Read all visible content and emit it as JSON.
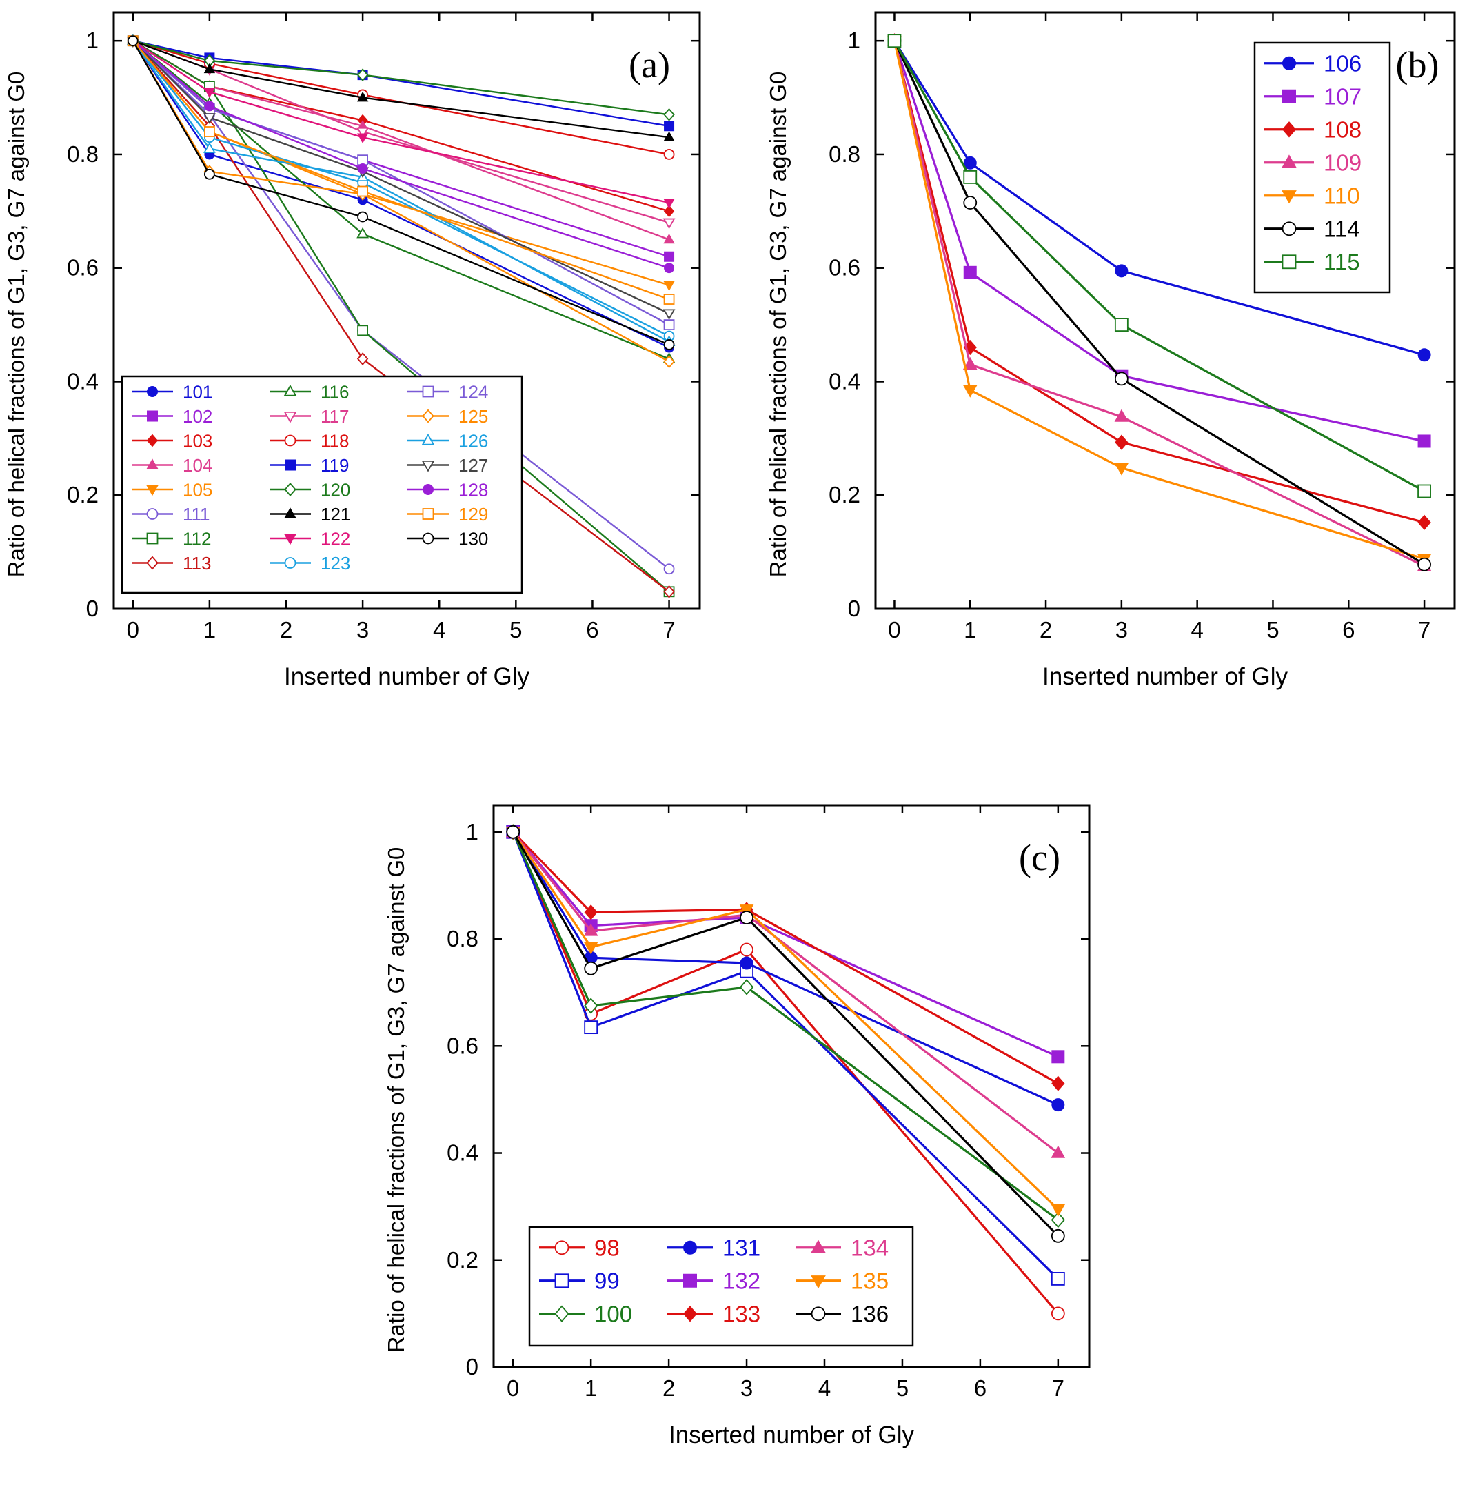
{
  "colors": {
    "blue": "#1010d8",
    "purple": "#9a1ed6",
    "red": "#dd1010",
    "pink": "#dd3c8e",
    "orange": "#ff8a00",
    "black": "#000000",
    "green": "#1c7a1c",
    "violet": "#7a5ad6",
    "darkred": "#c81414",
    "magenta": "#e0147a",
    "cyan": "#1aa0e0",
    "gray": "#444444"
  },
  "chart_data": [
    {
      "panel": "(a)",
      "type": "line",
      "xlabel": "Inserted number of Gly",
      "ylabel": "Ratio of helical fractions of G1, G3, G7 against G0",
      "xlim": [
        -0.25,
        7.4
      ],
      "ylim": [
        0,
        1.05
      ],
      "xticks": [
        "0",
        "1",
        "2",
        "3",
        "4",
        "5",
        "6",
        "7"
      ],
      "yticks": [
        "0",
        "0.2",
        "0.4",
        "0.6",
        "0.8",
        "1"
      ],
      "x": [
        0,
        1,
        3,
        7
      ],
      "legend_position": "bottom-left",
      "legend_columns": 3,
      "series": [
        {
          "name": "101",
          "color": "blue",
          "marker": "circle",
          "filled": true,
          "values": [
            1,
            0.8,
            0.72,
            0.46
          ]
        },
        {
          "name": "102",
          "color": "purple",
          "marker": "square",
          "filled": true,
          "values": [
            1,
            0.88,
            0.79,
            0.62
          ]
        },
        {
          "name": "103",
          "color": "red",
          "marker": "diamond",
          "filled": true,
          "values": [
            1,
            0.92,
            0.86,
            0.7
          ]
        },
        {
          "name": "104",
          "color": "pink",
          "marker": "triangle-up",
          "filled": true,
          "values": [
            1,
            0.92,
            0.85,
            0.65
          ]
        },
        {
          "name": "105",
          "color": "orange",
          "marker": "triangle-down",
          "filled": true,
          "values": [
            1,
            0.84,
            0.73,
            0.57
          ]
        },
        {
          "name": "111",
          "color": "violet",
          "marker": "circle",
          "filled": false,
          "values": [
            1,
            0.87,
            0.49,
            0.07
          ]
        },
        {
          "name": "112",
          "color": "green",
          "marker": "square",
          "filled": false,
          "values": [
            1,
            0.92,
            0.49,
            0.03
          ]
        },
        {
          "name": "113",
          "color": "darkred",
          "marker": "diamond",
          "filled": false,
          "values": [
            1,
            0.85,
            0.44,
            0.03
          ]
        },
        {
          "name": "116",
          "color": "green",
          "marker": "triangle-up",
          "filled": false,
          "values": [
            1,
            0.89,
            0.66,
            0.44
          ]
        },
        {
          "name": "117",
          "color": "pink",
          "marker": "triangle-down",
          "filled": false,
          "values": [
            1,
            0.95,
            0.84,
            0.68
          ]
        },
        {
          "name": "118",
          "color": "red",
          "marker": "circle",
          "filled": false,
          "values": [
            1,
            0.96,
            0.905,
            0.8
          ]
        },
        {
          "name": "119",
          "color": "blue",
          "marker": "square",
          "filled": true,
          "values": [
            1,
            0.97,
            0.94,
            0.85
          ]
        },
        {
          "name": "120",
          "color": "green",
          "marker": "diamond",
          "filled": false,
          "values": [
            1,
            0.965,
            0.94,
            0.87
          ]
        },
        {
          "name": "121",
          "color": "black",
          "marker": "triangle-up",
          "filled": true,
          "values": [
            1,
            0.95,
            0.9,
            0.83
          ]
        },
        {
          "name": "122",
          "color": "magenta",
          "marker": "triangle-down",
          "filled": true,
          "values": [
            1,
            0.91,
            0.83,
            0.715
          ]
        },
        {
          "name": "123",
          "color": "cyan",
          "marker": "circle",
          "filled": false,
          "values": [
            1,
            0.83,
            0.75,
            0.48
          ]
        },
        {
          "name": "124",
          "color": "violet",
          "marker": "square",
          "filled": false,
          "values": [
            1,
            0.88,
            0.79,
            0.5
          ]
        },
        {
          "name": "125",
          "color": "orange",
          "marker": "diamond",
          "filled": false,
          "values": [
            1,
            0.77,
            0.73,
            0.435
          ]
        },
        {
          "name": "126",
          "color": "cyan",
          "marker": "triangle-up",
          "filled": false,
          "values": [
            1,
            0.81,
            0.76,
            0.47
          ]
        },
        {
          "name": "127",
          "color": "gray",
          "marker": "triangle-down",
          "filled": false,
          "values": [
            1,
            0.865,
            0.77,
            0.52
          ]
        },
        {
          "name": "128",
          "color": "purple",
          "marker": "circle",
          "filled": true,
          "values": [
            1,
            0.885,
            0.775,
            0.6
          ]
        },
        {
          "name": "129",
          "color": "orange",
          "marker": "square",
          "filled": false,
          "values": [
            1,
            0.84,
            0.735,
            0.545
          ]
        },
        {
          "name": "130",
          "color": "black",
          "marker": "circle",
          "filled": false,
          "values": [
            1,
            0.765,
            0.69,
            0.465
          ]
        }
      ]
    },
    {
      "panel": "(b)",
      "type": "line",
      "xlabel": "Inserted number of Gly",
      "ylabel": "Ratio of helical fractions of G1, G3, G7 against G0",
      "xlim": [
        -0.25,
        7.4
      ],
      "ylim": [
        0,
        1.05
      ],
      "xticks": [
        "0",
        "1",
        "2",
        "3",
        "4",
        "5",
        "6",
        "7"
      ],
      "yticks": [
        "0",
        "0.2",
        "0.4",
        "0.6",
        "0.8",
        "1"
      ],
      "x": [
        0,
        1,
        3,
        7
      ],
      "legend_position": "top-right",
      "legend_columns": 1,
      "series": [
        {
          "name": "106",
          "color": "blue",
          "marker": "circle",
          "filled": true,
          "values": [
            1,
            0.785,
            0.595,
            0.447
          ]
        },
        {
          "name": "107",
          "color": "purple",
          "marker": "square",
          "filled": true,
          "values": [
            1,
            0.592,
            0.41,
            0.295
          ]
        },
        {
          "name": "108",
          "color": "red",
          "marker": "diamond",
          "filled": true,
          "values": [
            1,
            0.46,
            0.293,
            0.152
          ]
        },
        {
          "name": "109",
          "color": "pink",
          "marker": "triangle-up",
          "filled": true,
          "values": [
            1,
            0.43,
            0.338,
            0.075
          ]
        },
        {
          "name": "110",
          "color": "orange",
          "marker": "triangle-down",
          "filled": true,
          "values": [
            1,
            0.385,
            0.248,
            0.088
          ]
        },
        {
          "name": "114",
          "color": "black",
          "marker": "circle",
          "filled": false,
          "values": [
            1,
            0.715,
            0.405,
            0.078
          ]
        },
        {
          "name": "115",
          "color": "green",
          "marker": "square",
          "filled": false,
          "values": [
            1,
            0.76,
            0.5,
            0.207
          ]
        }
      ]
    },
    {
      "panel": "(c)",
      "type": "line",
      "xlabel": "Inserted number of Gly",
      "ylabel": "Ratio of helical fractions of G1, G3, G7 against G0",
      "xlim": [
        -0.25,
        7.4
      ],
      "ylim": [
        0,
        1.05
      ],
      "xticks": [
        "0",
        "1",
        "2",
        "3",
        "4",
        "5",
        "6",
        "7"
      ],
      "yticks": [
        "0",
        "0.2",
        "0.4",
        "0.6",
        "0.8",
        "1"
      ],
      "x": [
        0,
        1,
        3,
        7
      ],
      "legend_position": "bottom-left",
      "legend_columns": 3,
      "series": [
        {
          "name": "98",
          "color": "red",
          "marker": "circle",
          "filled": false,
          "values": [
            1,
            0.66,
            0.78,
            0.1
          ]
        },
        {
          "name": "99",
          "color": "blue",
          "marker": "square",
          "filled": false,
          "values": [
            1,
            0.635,
            0.74,
            0.165
          ]
        },
        {
          "name": "100",
          "color": "green",
          "marker": "diamond",
          "filled": false,
          "values": [
            1,
            0.675,
            0.71,
            0.275
          ]
        },
        {
          "name": "131",
          "color": "blue",
          "marker": "circle",
          "filled": true,
          "values": [
            1,
            0.765,
            0.755,
            0.49
          ]
        },
        {
          "name": "132",
          "color": "purple",
          "marker": "square",
          "filled": true,
          "values": [
            1,
            0.825,
            0.84,
            0.58
          ]
        },
        {
          "name": "133",
          "color": "red",
          "marker": "diamond",
          "filled": true,
          "values": [
            1,
            0.85,
            0.855,
            0.53
          ]
        },
        {
          "name": "134",
          "color": "pink",
          "marker": "triangle-up",
          "filled": true,
          "values": [
            1,
            0.815,
            0.845,
            0.4
          ]
        },
        {
          "name": "135",
          "color": "orange",
          "marker": "triangle-down",
          "filled": true,
          "values": [
            1,
            0.785,
            0.855,
            0.295
          ]
        },
        {
          "name": "136",
          "color": "black",
          "marker": "circle",
          "filled": false,
          "values": [
            1,
            0.745,
            0.84,
            0.245
          ]
        }
      ]
    }
  ]
}
